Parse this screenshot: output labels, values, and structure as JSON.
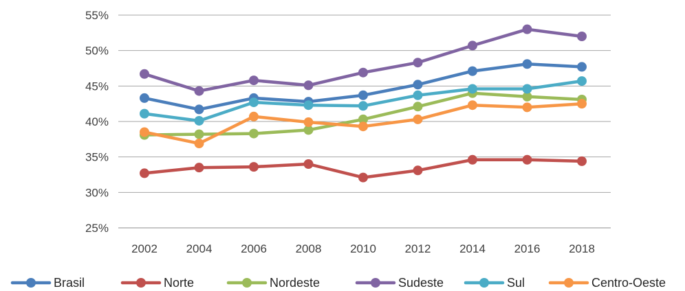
{
  "chart_data": {
    "type": "line",
    "title": "",
    "xlabel": "",
    "ylabel": "",
    "x": [
      2002,
      2004,
      2006,
      2008,
      2010,
      2012,
      2014,
      2016,
      2018
    ],
    "x_tick_labels": [
      "2002",
      "2004",
      "2006",
      "2008",
      "2010",
      "2012",
      "2014",
      "2016",
      "2018"
    ],
    "ylim": [
      0.25,
      0.55
    ],
    "y_ticks": [
      0.25,
      0.3,
      0.35,
      0.4,
      0.45,
      0.5,
      0.55
    ],
    "y_tick_labels": [
      "25%",
      "30%",
      "35%",
      "40%",
      "45%",
      "50%",
      "55%"
    ],
    "grid": "horizontal",
    "legend_position": "bottom",
    "series": [
      {
        "name": "Brasil",
        "color": "#4a7ebb",
        "values": [
          0.433,
          0.417,
          0.433,
          0.428,
          0.437,
          0.452,
          0.471,
          0.481,
          0.477
        ]
      },
      {
        "name": "Norte",
        "color": "#c0504d",
        "values": [
          0.327,
          0.335,
          0.336,
          0.34,
          0.321,
          0.331,
          0.346,
          0.346,
          0.344
        ]
      },
      {
        "name": "Nordeste",
        "color": "#9bbb59",
        "values": [
          0.381,
          0.382,
          0.383,
          0.388,
          0.403,
          0.421,
          0.44,
          0.435,
          0.431
        ]
      },
      {
        "name": "Sudeste",
        "color": "#8064a2",
        "values": [
          0.467,
          0.443,
          0.458,
          0.451,
          0.469,
          0.483,
          0.507,
          0.53,
          0.52
        ]
      },
      {
        "name": "Sul",
        "color": "#4bacc6",
        "values": [
          0.411,
          0.401,
          0.427,
          0.423,
          0.422,
          0.437,
          0.446,
          0.446,
          0.457
        ]
      },
      {
        "name": "Centro-Oeste",
        "color": "#f79646",
        "values": [
          0.385,
          0.369,
          0.407,
          0.399,
          0.393,
          0.403,
          0.423,
          0.42,
          0.425
        ]
      }
    ]
  }
}
